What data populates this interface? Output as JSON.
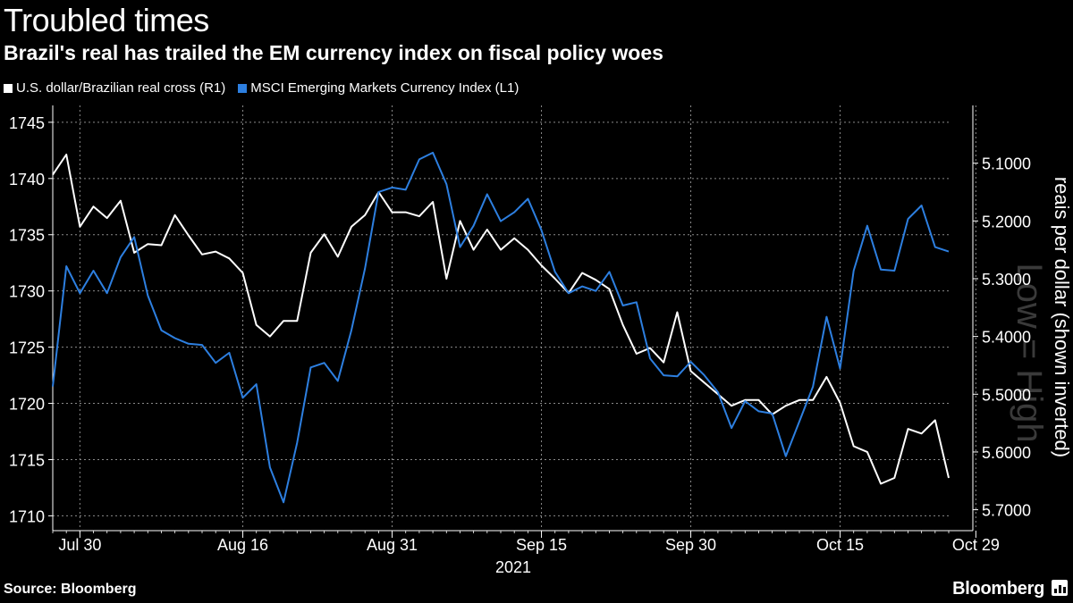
{
  "title": "Troubled times",
  "subtitle": "Brazil's real has trailed the EM currency index on fiscal policy woes",
  "source": "Source: Bloomberg",
  "brand": "Bloomberg",
  "watermark": "Low = High",
  "colors": {
    "usdbrl": "#ffffff",
    "msci": "#2d7fe0",
    "grid": "#8a8a8a"
  },
  "chart_data": {
    "type": "line",
    "x_tick_labels": [
      "Jul 30",
      "Aug 16",
      "Aug 31",
      "Sep 15",
      "Sep 30",
      "Oct 15",
      "Oct 29"
    ],
    "x_tick_indices": [
      2,
      14,
      25,
      36,
      47,
      58,
      68
    ],
    "year_label": "2021",
    "left_axis": {
      "ticks": [
        1710,
        1715,
        1720,
        1725,
        1730,
        1735,
        1740,
        1745
      ],
      "range": [
        1709,
        1746.5
      ]
    },
    "right_axis": {
      "label": "reais per dollar (shown inverted)",
      "inverted": true,
      "ticks": [
        "5.1000",
        "5.2000",
        "5.3000",
        "5.4000",
        "5.5000",
        "5.6000",
        "5.7000"
      ],
      "tick_values": [
        5.1,
        5.2,
        5.3,
        5.4,
        5.5,
        5.6,
        5.7
      ],
      "range": [
        5.0,
        5.73
      ]
    },
    "series": [
      {
        "name": "U.S. dollar/Brazilian real cross (R1)",
        "axis": "right",
        "color": "#ffffff",
        "values": [
          5.12,
          5.085,
          5.21,
          5.175,
          5.195,
          5.165,
          5.255,
          5.24,
          5.242,
          5.19,
          5.225,
          5.258,
          5.253,
          5.265,
          5.29,
          5.38,
          5.4,
          5.373,
          5.373,
          5.255,
          5.223,
          5.262,
          5.21,
          5.19,
          5.15,
          5.185,
          5.185,
          5.192,
          5.167,
          5.3,
          5.2,
          5.25,
          5.215,
          5.25,
          5.23,
          5.25,
          5.277,
          5.3,
          5.325,
          5.29,
          5.302,
          5.318,
          5.38,
          5.43,
          5.42,
          5.445,
          5.358,
          5.46,
          5.48,
          5.5,
          5.52,
          5.51,
          5.51,
          5.535,
          5.52,
          5.51,
          5.51,
          5.47,
          5.515,
          5.59,
          5.6,
          5.655,
          5.645,
          5.56,
          5.568,
          5.545,
          5.645
        ]
      },
      {
        "name": "MSCI Emerging Markets Currency Index  (L1)",
        "axis": "left",
        "color": "#2d7fe0",
        "values": [
          1721.5,
          1732.2,
          1729.8,
          1731.8,
          1729.8,
          1733.0,
          1734.8,
          1729.6,
          1726.5,
          1725.8,
          1725.3,
          1725.2,
          1723.6,
          1724.5,
          1720.5,
          1721.7,
          1714.3,
          1711.2,
          1716.5,
          1723.2,
          1723.6,
          1722.0,
          1726.5,
          1732.0,
          1738.8,
          1739.2,
          1739.0,
          1741.7,
          1742.3,
          1739.5,
          1733.9,
          1735.8,
          1738.6,
          1736.2,
          1737.0,
          1738.2,
          1735.4,
          1731.7,
          1729.8,
          1730.4,
          1730.0,
          1731.7,
          1728.7,
          1729.0,
          1724.0,
          1722.5,
          1722.4,
          1723.7,
          1722.5,
          1721.0,
          1717.8,
          1720.2,
          1719.3,
          1719.1,
          1715.3,
          1718.4,
          1721.5,
          1727.7,
          1723.1,
          1731.8,
          1735.8,
          1731.9,
          1731.8,
          1736.4,
          1737.6,
          1733.9,
          1733.5
        ]
      }
    ]
  }
}
